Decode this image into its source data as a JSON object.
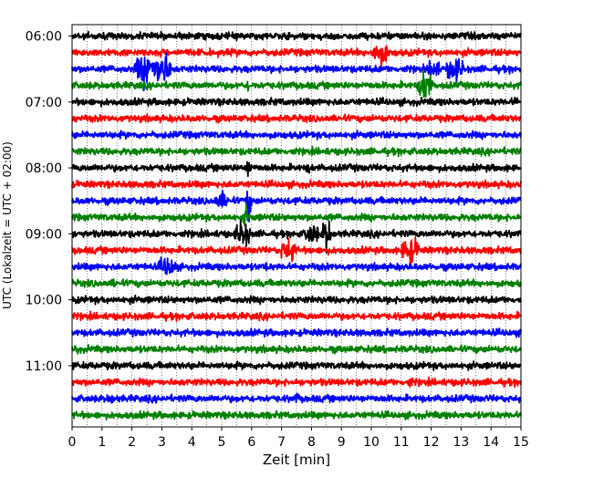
{
  "chart_data": {
    "type": "line",
    "subtype": "helicorder-seismogram",
    "title": "",
    "xlabel": "Zeit  [min]",
    "ylabel": "UTC (Lokalzeit = UTC + 02:00)",
    "xlim": [
      0,
      15
    ],
    "x_ticks": [
      0,
      1,
      2,
      3,
      4,
      5,
      6,
      7,
      8,
      9,
      10,
      11,
      12,
      13,
      14,
      15
    ],
    "x_tick_labels": [
      "0",
      "1",
      "2",
      "3",
      "4",
      "5",
      "6",
      "7",
      "8",
      "9",
      "10",
      "11",
      "12",
      "13",
      "14",
      "15"
    ],
    "y_ticks": [
      "06:00",
      "07:00",
      "08:00",
      "09:00",
      "10:00",
      "11:00"
    ],
    "first_trace_start": "06:00",
    "trace_duration_min": 15,
    "traces_per_hour": 4,
    "trace_count": 24,
    "colors": [
      "#000000",
      "#ff0000",
      "#0000ff",
      "#008000"
    ],
    "vertical_grid": "dotted, every 0.5 min",
    "events": [
      {
        "trace": 1,
        "minute": 10.3,
        "duration_min": 0.6,
        "amplitude": 4.2
      },
      {
        "trace": 2,
        "minute": 2.5,
        "duration_min": 0.8,
        "amplitude": 5.5
      },
      {
        "trace": 2,
        "minute": 3.0,
        "duration_min": 0.6,
        "amplitude": 6.0
      },
      {
        "trace": 2,
        "minute": 12.1,
        "duration_min": 0.4,
        "amplitude": 3.5
      },
      {
        "trace": 2,
        "minute": 12.8,
        "duration_min": 0.6,
        "amplitude": 4.0
      },
      {
        "trace": 3,
        "minute": 11.8,
        "duration_min": 0.5,
        "amplitude": 5.5
      },
      {
        "trace": 3,
        "minute": 5.9,
        "duration_min": 0.1,
        "amplitude": 2.5
      },
      {
        "trace": 4,
        "minute": 14.8,
        "duration_min": 0.2,
        "amplitude": 2.0
      },
      {
        "trace": 8,
        "minute": 5.9,
        "duration_min": 0.15,
        "amplitude": 5.0
      },
      {
        "trace": 8,
        "minute": 7.9,
        "duration_min": 0.1,
        "amplitude": 2.5
      },
      {
        "trace": 10,
        "minute": 5.0,
        "duration_min": 0.5,
        "amplitude": 3.0
      },
      {
        "trace": 10,
        "minute": 5.9,
        "duration_min": 0.2,
        "amplitude": 5.5
      },
      {
        "trace": 11,
        "minute": 5.8,
        "duration_min": 0.15,
        "amplitude": 3.5
      },
      {
        "trace": 12,
        "minute": 5.7,
        "duration_min": 0.5,
        "amplitude": 4.5
      },
      {
        "trace": 12,
        "minute": 8.0,
        "duration_min": 0.5,
        "amplitude": 3.5
      },
      {
        "trace": 12,
        "minute": 8.5,
        "duration_min": 0.3,
        "amplitude": 5.5
      },
      {
        "trace": 13,
        "minute": 7.2,
        "duration_min": 0.5,
        "amplitude": 4.0
      },
      {
        "trace": 13,
        "minute": 11.3,
        "duration_min": 0.6,
        "amplitude": 4.5
      },
      {
        "trace": 13,
        "minute": 7.4,
        "duration_min": 0.1,
        "amplitude": 6.0
      },
      {
        "trace": 14,
        "minute": 3.2,
        "duration_min": 0.6,
        "amplitude": 3.5
      },
      {
        "trace": 14,
        "minute": 6.5,
        "duration_min": 0.1,
        "amplitude": 2.0
      },
      {
        "trace": 15,
        "minute": 1.4,
        "duration_min": 0.1,
        "amplitude": 2.0
      },
      {
        "trace": 19,
        "minute": 0.1,
        "duration_min": 0.3,
        "amplitude": 2.0
      },
      {
        "trace": 22,
        "minute": 1.3,
        "duration_min": 0.3,
        "amplitude": 2.0
      },
      {
        "trace": 22,
        "minute": 7.5,
        "duration_min": 0.2,
        "amplitude": 2.0
      },
      {
        "trace": 21,
        "minute": 11.3,
        "duration_min": 0.2,
        "amplitude": 2.0
      }
    ]
  }
}
